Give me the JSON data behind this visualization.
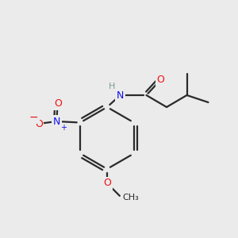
{
  "background_color": "#ebebeb",
  "bond_color": "#2a2a2a",
  "atom_colors": {
    "N": "#1010ee",
    "O": "#ee1010",
    "H": "#7a9a9a"
  },
  "figsize": [
    3.0,
    3.0
  ],
  "dpi": 100
}
